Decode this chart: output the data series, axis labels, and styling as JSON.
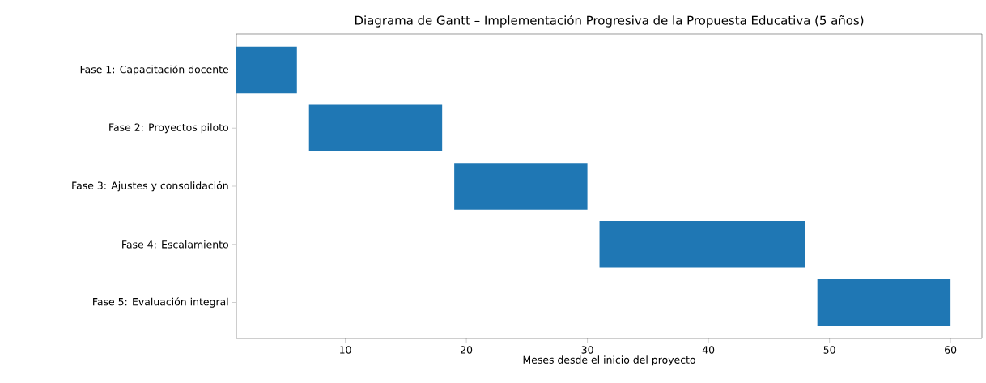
{
  "chart_data": {
    "type": "bar",
    "orientation": "horizontal",
    "title": "Diagrama de Gantt – Implementación Progresiva de la Propuesta Educativa (5 años)",
    "xlabel": "Meses desde el inicio del proyecto",
    "categories": [
      "Fase 1: Capacitación docente",
      "Fase 2: Proyectos piloto",
      "Fase 3: Ajustes y consolidación",
      "Fase 4: Escalamiento",
      "Fase 5: Evaluación integral"
    ],
    "base": [
      1,
      7,
      19,
      31,
      49
    ],
    "values": [
      5,
      11,
      11,
      17,
      11
    ],
    "color": "#1f77b4",
    "xlim": [
      1,
      62.6
    ],
    "xticks": [
      10,
      20,
      30,
      40,
      50,
      60
    ],
    "grid": false
  }
}
